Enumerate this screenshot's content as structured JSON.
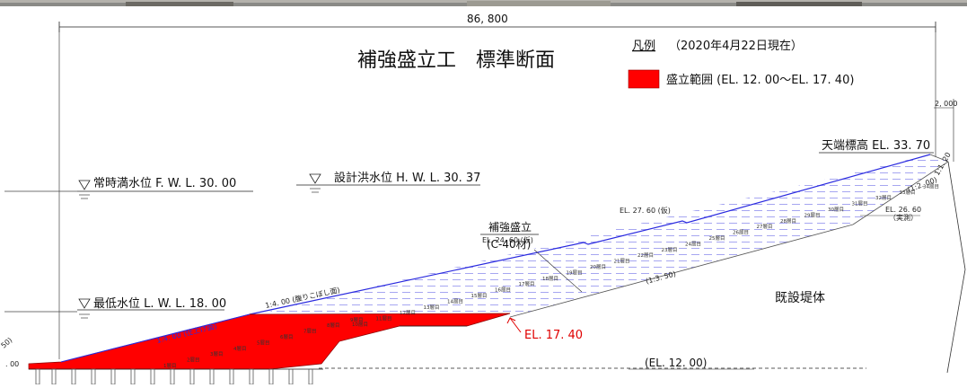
{
  "title": "補強盛立工　標準断面",
  "legend": {
    "header": "凡例",
    "date": "（2020年4月22日現在）",
    "item_label": "盛立範囲 (EL. 12. 00～EL. 17. 40)",
    "item_color": "#ff0000"
  },
  "dimensions": {
    "total_width": "86, 800",
    "crest_width": "2, 000"
  },
  "water_levels": {
    "normal": "常時満水位 F. W. L. 30. 00",
    "flood": "設計洪水位 H. W. L. 30. 37",
    "low": "最低水位 L. W. L. 18. 00"
  },
  "labels": {
    "crest": "天端標高 EL. 33. 70",
    "reinforced_fill": "補強盛立",
    "material": "(C-40材)",
    "existing_body": "既設堤体",
    "el_17_40": "EL. 17. 40",
    "el_12_00": "(EL. 12. 00)",
    "el_27_60": "EL. 27. 60 (仮)",
    "el_24_60": "EL. 24. 60 (仮)",
    "el_26_60": "EL. 26. 60",
    "el_26_60_note": "（実測）",
    "slope_upper": "1:4. 00 (腹りこぼし面)",
    "slope_lower": "1:4. 00 (仕上げ面)",
    "slope_back": "(1:3. 50)",
    "slope_right": "(1:2. 00)",
    "slope_crest": "1:1. 20",
    "edge_left_a": "50)",
    "edge_left_b": ". 00"
  },
  "layers": {
    "red": [
      "1層目",
      "2層目",
      "3層目",
      "4層目",
      "5層目",
      "6層目",
      "7層目",
      "8層目",
      "9層目"
    ],
    "blue": [
      "10層目",
      "11層目",
      "12層目",
      "13層目",
      "14層目",
      "15層目",
      "16層目",
      "17層目",
      "18層目",
      "19層目",
      "20層目",
      "21層目",
      "22層目",
      "23層目",
      "24層目",
      "25層目",
      "26層目",
      "27層目",
      "28層目",
      "29層目",
      "30層目",
      "31層目",
      "32層目",
      "33層目",
      "34層目"
    ]
  },
  "colors": {
    "fill_red": "#ff0000",
    "line_blue": "#2a2adf",
    "label_red": "#e00000"
  }
}
